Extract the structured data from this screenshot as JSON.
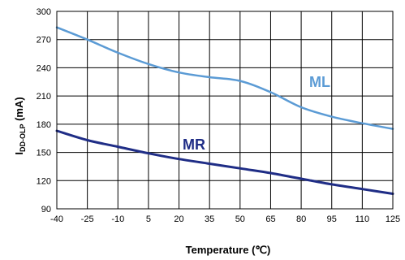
{
  "chart_data": {
    "type": "line",
    "xlabel": "Temperature (℃)",
    "ylabel_main": "I",
    "ylabel_sub": "DD-OLP",
    "ylabel_unit": " (mA)",
    "xlim": [
      -40,
      125
    ],
    "ylim": [
      90,
      300
    ],
    "x_ticks": [
      -40,
      -25,
      -10,
      5,
      20,
      35,
      50,
      65,
      80,
      95,
      110,
      125
    ],
    "y_ticks": [
      90,
      120,
      150,
      180,
      210,
      240,
      270,
      300
    ],
    "grid": true,
    "series": [
      {
        "name": "ML",
        "color": "#5b9bd5",
        "x": [
          -40,
          -25,
          -10,
          5,
          20,
          35,
          50,
          65,
          80,
          95,
          110,
          125
        ],
        "y": [
          283,
          270,
          256,
          244,
          235,
          230,
          226,
          214,
          198,
          188,
          181,
          175
        ]
      },
      {
        "name": "MR",
        "color": "#1f2d86",
        "x": [
          -40,
          -25,
          -10,
          5,
          20,
          35,
          50,
          65,
          80,
          95,
          110,
          125
        ],
        "y": [
          173,
          163,
          156,
          149,
          143,
          138,
          133,
          128,
          122,
          116,
          111,
          106
        ]
      }
    ]
  }
}
